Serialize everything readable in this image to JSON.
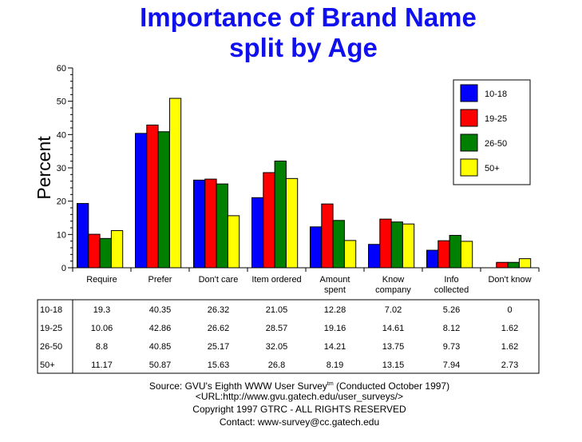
{
  "chart_data": {
    "type": "bar",
    "title": [
      "Importance of Brand Name",
      "split by Age"
    ],
    "ylabel": "Percent",
    "ylim": [
      0,
      60
    ],
    "yticks": [
      0,
      10,
      20,
      30,
      40,
      50,
      60
    ],
    "categories": [
      "Require",
      "Prefer",
      "Don't care",
      "Item ordered",
      [
        "Amount",
        "spent"
      ],
      [
        "Know",
        "company"
      ],
      [
        "Info",
        "collected"
      ],
      "Don't know"
    ],
    "series": [
      {
        "name": "10-18",
        "color": "#0000ff",
        "values": [
          19.3,
          40.35,
          26.32,
          21.05,
          12.28,
          7.02,
          5.26,
          0
        ]
      },
      {
        "name": "19-25",
        "color": "#ff0000",
        "values": [
          10.06,
          42.86,
          26.62,
          28.57,
          19.16,
          14.61,
          8.12,
          1.62
        ]
      },
      {
        "name": "26-50",
        "color": "#008000",
        "values": [
          8.8,
          40.85,
          25.17,
          32.05,
          14.21,
          13.75,
          9.73,
          1.62
        ]
      },
      {
        "name": "50+",
        "color": "#ffff00",
        "values": [
          11.17,
          50.87,
          15.63,
          26.8,
          8.19,
          13.15,
          7.94,
          2.73
        ]
      }
    ],
    "table_values": [
      [
        "19.3",
        "40.35",
        "26.32",
        "21.05",
        "12.28",
        "7.02",
        "5.26",
        "0"
      ],
      [
        "10.06",
        "42.86",
        "26.62",
        "28.57",
        "19.16",
        "14.61",
        "8.12",
        "1.62"
      ],
      [
        "8.8",
        "40.85",
        "25.17",
        "32.05",
        "14.21",
        "13.75",
        "9.73",
        "1.62"
      ],
      [
        "11.17",
        "50.87",
        "15.63",
        "26.8",
        "8.19",
        "13.15",
        "7.94",
        "2.73"
      ]
    ],
    "legend_position": "top-right",
    "grid": false
  },
  "footer": {
    "line1_pre": "Source: GVU's Eighth WWW User Survey",
    "line1_sup": "tm",
    "line1_post": " (Conducted October 1997)",
    "line2": "<URL:http://www.gvu.gatech.edu/user_surveys/>",
    "line3": "Copyright 1997 GTRC - ALL RIGHTS RESERVED",
    "line4": "Contact: www-survey@cc.gatech.edu"
  }
}
